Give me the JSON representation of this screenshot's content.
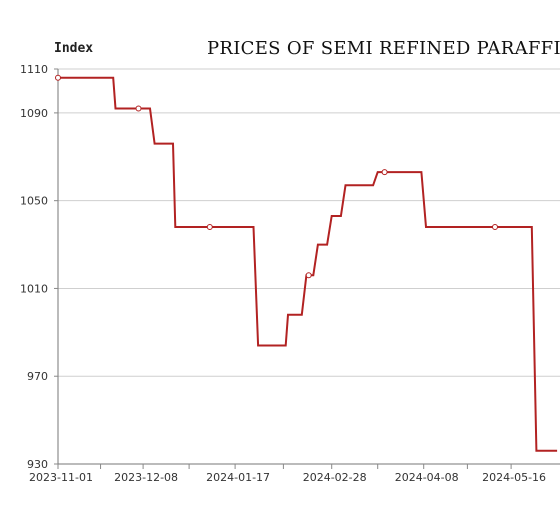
{
  "chart_data": {
    "type": "line",
    "title": "PRICES OF SEMI REFINED PARAFFI",
    "ylabel": "Index",
    "xlabel": "",
    "ylim": [
      930,
      1110
    ],
    "yticks": [
      930,
      970,
      1010,
      1050,
      1090,
      1110
    ],
    "ytick_labels": [
      "930",
      "970",
      "1010",
      "1050",
      "1090",
      "1110"
    ],
    "xticks": [
      "2023-11-01",
      "2023-12-08",
      "2024-01-17",
      "2024-02-28",
      "2024-04-08",
      "2024-05-16"
    ],
    "grid": true,
    "color": "#b22222",
    "series": [
      {
        "name": "",
        "points": [
          [
            "2023-11-01",
            1106
          ],
          [
            "2023-11-25",
            1106
          ],
          [
            "2023-11-26",
            1092
          ],
          [
            "2023-12-11",
            1092
          ],
          [
            "2023-12-13",
            1076
          ],
          [
            "2023-12-21",
            1076
          ],
          [
            "2023-12-22",
            1038
          ],
          [
            "2024-01-25",
            1038
          ],
          [
            "2024-01-27",
            984
          ],
          [
            "2024-02-08",
            984
          ],
          [
            "2024-02-09",
            998
          ],
          [
            "2024-02-15",
            998
          ],
          [
            "2024-02-17",
            1016
          ],
          [
            "2024-02-20",
            1016
          ],
          [
            "2024-02-22",
            1030
          ],
          [
            "2024-02-26",
            1030
          ],
          [
            "2024-02-28",
            1043
          ],
          [
            "2024-03-03",
            1043
          ],
          [
            "2024-03-05",
            1057
          ],
          [
            "2024-03-17",
            1057
          ],
          [
            "2024-03-19",
            1063
          ],
          [
            "2024-04-07",
            1063
          ],
          [
            "2024-04-09",
            1038
          ],
          [
            "2024-05-25",
            1038
          ],
          [
            "2024-05-27",
            936
          ],
          [
            "2024-06-05",
            936
          ]
        ]
      }
    ],
    "markers": [
      [
        "2023-11-01",
        1106
      ],
      [
        "2023-12-06",
        1092
      ],
      [
        "2024-01-06",
        1038
      ],
      [
        "2024-02-18",
        1016
      ],
      [
        "2024-03-22",
        1063
      ],
      [
        "2024-05-09",
        1038
      ]
    ]
  }
}
